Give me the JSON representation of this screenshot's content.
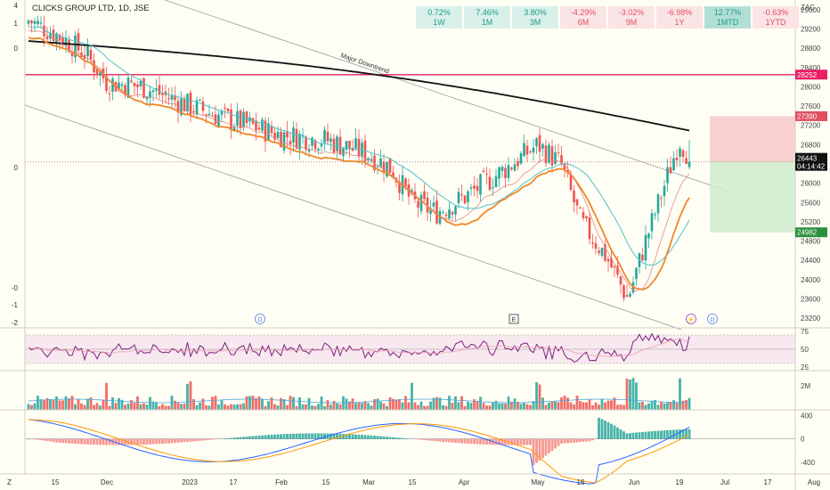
{
  "header": {
    "symbol": "CLICKS GROUP LTD, 1D, JSE",
    "currency": "ZAC"
  },
  "performance": [
    {
      "value": "0.72%",
      "period": "1W",
      "dir": "up"
    },
    {
      "value": "7.46%",
      "period": "1M",
      "dir": "up"
    },
    {
      "value": "3.80%",
      "period": "3M",
      "dir": "up"
    },
    {
      "value": "-4.29%",
      "period": "6M",
      "dir": "down"
    },
    {
      "value": "-3.02%",
      "period": "9M",
      "dir": "down"
    },
    {
      "value": "-6.98%",
      "period": "1Y",
      "dir": "down"
    },
    {
      "value": "12.77%",
      "period": "1MTD",
      "dir": "upstrong"
    },
    {
      "value": "-0.63%",
      "period": "1YTD",
      "dir": "down"
    }
  ],
  "annotations": {
    "trend_label": "Major Downtrend",
    "event_d": "D",
    "event_e": "E",
    "event_flash": "⚡"
  },
  "price_labels": {
    "resistance": "28252",
    "stop": "27390",
    "current": "26443",
    "countdown": "04:14:42",
    "target": "24982"
  },
  "left_scale": [
    "4",
    "1",
    "0",
    "0",
    "-0",
    "-1",
    "-2"
  ],
  "colors": {
    "up": "#26a69a",
    "down": "#ef5350",
    "resistance_line": "#e91e63",
    "ma200": "#111111",
    "ma_orange": "#f0862a",
    "ma_teal": "#4fc3c7",
    "rsi": "#7b1f7f",
    "macd_line": "#2962ff",
    "signal_line": "#ff9800"
  },
  "chart_data": [
    {
      "type": "candlestick",
      "title": "CLICKS GROUP LTD, 1D, JSE",
      "ylabel": "ZAC",
      "y_ticks": [
        29600,
        29200,
        28800,
        28400,
        28000,
        27600,
        27200,
        26800,
        26400,
        26000,
        25600,
        25200,
        24800,
        24400,
        24000,
        23600,
        23200
      ],
      "y_tick_labels": [
        "29600",
        "29200",
        "28800",
        "28400",
        "28000",
        "27600",
        "27200",
        "26800",
        "26400",
        "26000",
        "25600",
        "25200",
        "24800",
        "24400",
        "24000",
        "23600",
        "23200"
      ],
      "ylim": [
        23000,
        29800
      ],
      "x_ticks": [
        "15",
        "Dec",
        "2023",
        "17",
        "Feb",
        "15",
        "Mar",
        "15",
        "Apr",
        "May",
        "16",
        "Jun",
        "19",
        "Jul",
        "17",
        "Aug"
      ],
      "ohlc_anchors": [
        {
          "x": "15",
          "close": 29100
        },
        {
          "x": "Dec",
          "close": 28100
        },
        {
          "x": "2023",
          "close": 27600
        },
        {
          "x": "Feb",
          "close": 27000
        },
        {
          "x": "Mar",
          "close": 26600
        },
        {
          "x": "15",
          "close": 25600
        },
        {
          "x": "Apr",
          "close": 25700
        },
        {
          "x": "May",
          "close": 26800
        },
        {
          "x": "16",
          "close": 25200
        },
        {
          "x": "Jun",
          "close": 23600
        },
        {
          "x": "19",
          "close": 26443
        }
      ],
      "levels": {
        "resistance": 28252,
        "stop": 27390,
        "last": 26443,
        "target": 24982
      },
      "moving_averages": [
        "MA200",
        "EMA",
        "SMA"
      ],
      "trend_channel": "Major Downtrend"
    },
    {
      "type": "line",
      "name": "RSI",
      "y_ticks": [
        75,
        50,
        25
      ],
      "ylim": [
        20,
        80
      ],
      "upper_band": 70,
      "lower_band": 30,
      "last": 68
    },
    {
      "type": "bar",
      "name": "Volume",
      "y_ticks": [
        "2M"
      ],
      "peaks": [
        "Dec",
        "Apr",
        "Jun"
      ]
    },
    {
      "type": "bar",
      "name": "MACD",
      "y_ticks": [
        400,
        0,
        -400
      ],
      "ylim": [
        -600,
        500
      ]
    }
  ],
  "scales": {
    "rsi": [
      "75",
      "50",
      "25"
    ],
    "volume": [
      "2M"
    ],
    "macd": [
      "400",
      "0",
      "-400"
    ]
  }
}
